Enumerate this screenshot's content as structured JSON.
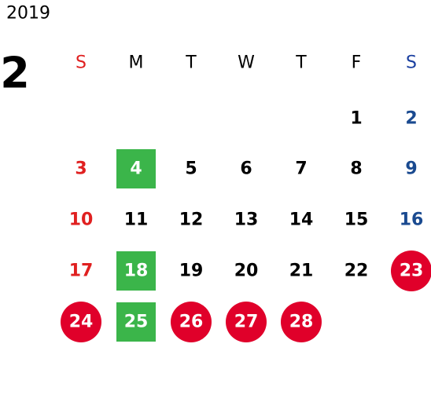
{
  "header": {
    "year": "2019",
    "month": "2"
  },
  "weekdays": [
    {
      "label": "S",
      "color": "#e02020"
    },
    {
      "label": "M",
      "color": "#000000"
    },
    {
      "label": "T",
      "color": "#000000"
    },
    {
      "label": "W",
      "color": "#000000"
    },
    {
      "label": "T",
      "color": "#000000"
    },
    {
      "label": "F",
      "color": "#000000"
    },
    {
      "label": "S",
      "color": "#1a3fa0"
    }
  ],
  "day_colors": [
    "#e02020",
    "#000000",
    "#000000",
    "#000000",
    "#000000",
    "#000000",
    "#1a4a90"
  ],
  "weeks": [
    [
      null,
      null,
      null,
      null,
      null,
      {
        "day": "1"
      },
      {
        "day": "2"
      }
    ],
    [
      {
        "day": "3"
      },
      {
        "day": "4",
        "highlight": "square"
      },
      {
        "day": "5"
      },
      {
        "day": "6"
      },
      {
        "day": "7"
      },
      {
        "day": "8"
      },
      {
        "day": "9"
      }
    ],
    [
      {
        "day": "10"
      },
      {
        "day": "11"
      },
      {
        "day": "12"
      },
      {
        "day": "13"
      },
      {
        "day": "14"
      },
      {
        "day": "15"
      },
      {
        "day": "16"
      }
    ],
    [
      {
        "day": "17"
      },
      {
        "day": "18",
        "highlight": "square"
      },
      {
        "day": "19"
      },
      {
        "day": "20"
      },
      {
        "day": "21"
      },
      {
        "day": "22"
      },
      {
        "day": "23",
        "highlight": "circle"
      }
    ],
    [
      {
        "day": "24",
        "highlight": "circle"
      },
      {
        "day": "25",
        "highlight": "square"
      },
      {
        "day": "26",
        "highlight": "circle"
      },
      {
        "day": "27",
        "highlight": "circle"
      },
      {
        "day": "28",
        "highlight": "circle"
      },
      null,
      null
    ]
  ],
  "highlight_colors": {
    "square": "#3bb54a",
    "circle": "#e0002a"
  }
}
